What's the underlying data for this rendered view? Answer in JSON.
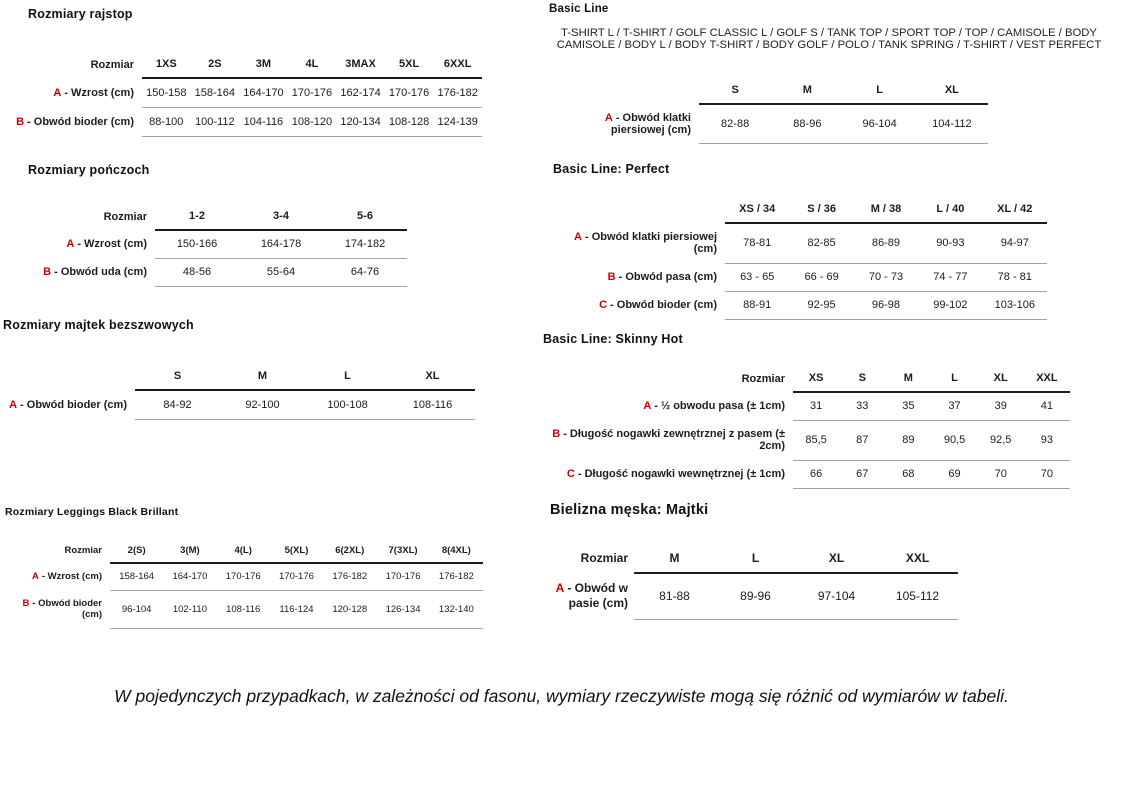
{
  "sections": {
    "rajstop": {
      "title": "Rozmiary rajstop",
      "size_label": "Rozmiar",
      "columns": [
        "1XS",
        "2S",
        "3M",
        "4L",
        "3MAX",
        "5XL",
        "6XXL"
      ],
      "rows": [
        {
          "letter": "A",
          "label": "- Wzrost (cm)",
          "values": [
            "150-158",
            "158-164",
            "164-170",
            "170-176",
            "162-174",
            "170-176",
            "176-182"
          ]
        },
        {
          "letter": "B",
          "label": "- Obwód bioder (cm)",
          "values": [
            "88-100",
            "100-112",
            "104-116",
            "108-120",
            "120-134",
            "108-128",
            "124-139"
          ]
        }
      ]
    },
    "ponczochy": {
      "title": "Rozmiary pończoch",
      "size_label": "Rozmiar",
      "columns": [
        "1-2",
        "3-4",
        "5-6"
      ],
      "rows": [
        {
          "letter": "A",
          "label": "- Wzrost (cm)",
          "values": [
            "150-166",
            "164-178",
            "174-182"
          ]
        },
        {
          "letter": "B",
          "label": "- Obwód uda (cm)",
          "values": [
            "48-56",
            "55-64",
            "64-76"
          ]
        }
      ]
    },
    "majtki_bezszwowe": {
      "title": "Rozmiary majtek bezszwowych",
      "size_label": "",
      "columns": [
        "S",
        "M",
        "L",
        "XL"
      ],
      "rows": [
        {
          "letter": "A",
          "label": "- Obwód bioder (cm)",
          "values": [
            "84-92",
            "92-100",
            "100-108",
            "108-116"
          ]
        }
      ]
    },
    "leggings": {
      "title": "Rozmiary Leggings Black Brillant",
      "size_label": "Rozmiar",
      "columns": [
        "2(S)",
        "3(M)",
        "4(L)",
        "5(XL)",
        "6(2XL)",
        "7(3XL)",
        "8(4XL)"
      ],
      "rows": [
        {
          "letter": "A",
          "label": "- Wzrost (cm)",
          "values": [
            "158-164",
            "164-170",
            "170-176",
            "170-176",
            "176-182",
            "170-176",
            "176-182"
          ]
        },
        {
          "letter": "B",
          "label": "- Obwód bioder (cm)",
          "values": [
            "96-104",
            "102-110",
            "108-116",
            "116-124",
            "120-128",
            "126-134",
            "132-140"
          ]
        }
      ]
    },
    "basic_line": {
      "title": "Basic Line",
      "subtitle": "T-SHIRT L / T-SHIRT / GOLF CLASSIC L / GOLF S / TANK TOP / SPORT TOP / TOP / CAMISOLE / BODY CAMISOLE / BODY L / BODY T-SHIRT / BODY GOLF / POLO / TANK SPRING / T-SHIRT / VEST PERFECT",
      "size_label": "",
      "columns": [
        "S",
        "M",
        "L",
        "XL"
      ],
      "rows": [
        {
          "letter": "A",
          "label": "- Obwód klatki piersiowej (cm)",
          "values": [
            "82-88",
            "88-96",
            "96-104",
            "104-112"
          ]
        }
      ]
    },
    "basic_line_perfect": {
      "title": "Basic Line: Perfect",
      "size_label": "",
      "columns": [
        "XS / 34",
        "S / 36",
        "M / 38",
        "L / 40",
        "XL / 42"
      ],
      "rows": [
        {
          "letter": "A",
          "label": "- Obwód klatki piersiowej (cm)",
          "values": [
            "78-81",
            "82-85",
            "86-89",
            "90-93",
            "94-97"
          ]
        },
        {
          "letter": "B",
          "label": "- Obwód pasa (cm)",
          "values": [
            "63 - 65",
            "66 - 69",
            "70 - 73",
            "74 - 77",
            "78 - 81"
          ]
        },
        {
          "letter": "C",
          "label": "- Obwód bioder (cm)",
          "values": [
            "88-91",
            "92-95",
            "96-98",
            "99-102",
            "103-106"
          ]
        }
      ]
    },
    "skinny_hot": {
      "title": "Basic Line: Skinny Hot",
      "size_label": "Rozmiar",
      "columns": [
        "XS",
        "S",
        "M",
        "L",
        "XL",
        "XXL"
      ],
      "rows": [
        {
          "letter": "A",
          "label": "- ½ obwodu pasa (± 1cm)",
          "values": [
            "31",
            "33",
            "35",
            "37",
            "39",
            "41"
          ]
        },
        {
          "letter": "B",
          "label": "- Długość nogawki zewnętrznej z pasem (± 2cm)",
          "values": [
            "85,5",
            "87",
            "89",
            "90,5",
            "92,5",
            "93"
          ]
        },
        {
          "letter": "C",
          "label": "- Długość nogawki wewnętrznej (± 1cm)",
          "values": [
            "66",
            "67",
            "68",
            "69",
            "70",
            "70"
          ]
        }
      ]
    },
    "bielizna_meska": {
      "title": "Bielizna męska: Majtki",
      "size_label": "Rozmiar",
      "columns": [
        "M",
        "L",
        "XL",
        "XXL"
      ],
      "rows": [
        {
          "letter": "A",
          "label": "- Obwód w pasie (cm)",
          "values": [
            "81-88",
            "89-96",
            "97-104",
            "105-112"
          ]
        }
      ]
    }
  },
  "note": "W pojedynczych przypadkach, w zależności od fasonu, wymiary rzeczywiste mogą się różnić od wymiarów w tabeli.",
  "colors": {
    "accent_red": "#cc0000",
    "line_dark": "#1c1c1c",
    "line_light": "#a3a3a3",
    "text": "#1c1c1c"
  }
}
